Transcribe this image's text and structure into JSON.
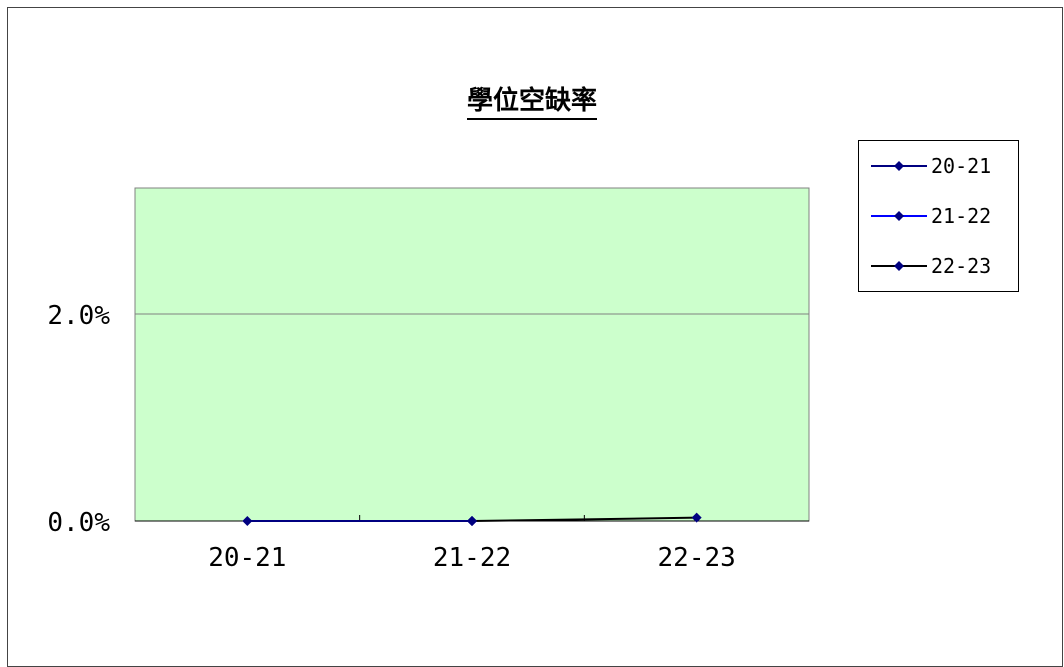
{
  "chart_data": {
    "type": "line",
    "title": "學位空缺率",
    "categories": [
      "20-21",
      "21-22",
      "22-23"
    ],
    "y_ticks": [
      "0.0%",
      "2.0%"
    ],
    "ylim": [
      0,
      0.03
    ],
    "grid": true,
    "plot_background": "#ccffcc",
    "legend_position": "right",
    "series": [
      {
        "name": "20-21",
        "color": "#000080",
        "values": [
          0.0,
          0.0,
          null
        ]
      },
      {
        "name": "21-22",
        "color": "#0000ff",
        "values": [
          null,
          0.0,
          null
        ]
      },
      {
        "name": "22-23",
        "color": "#000000",
        "values": [
          null,
          0.0,
          0.0003
        ]
      }
    ]
  }
}
